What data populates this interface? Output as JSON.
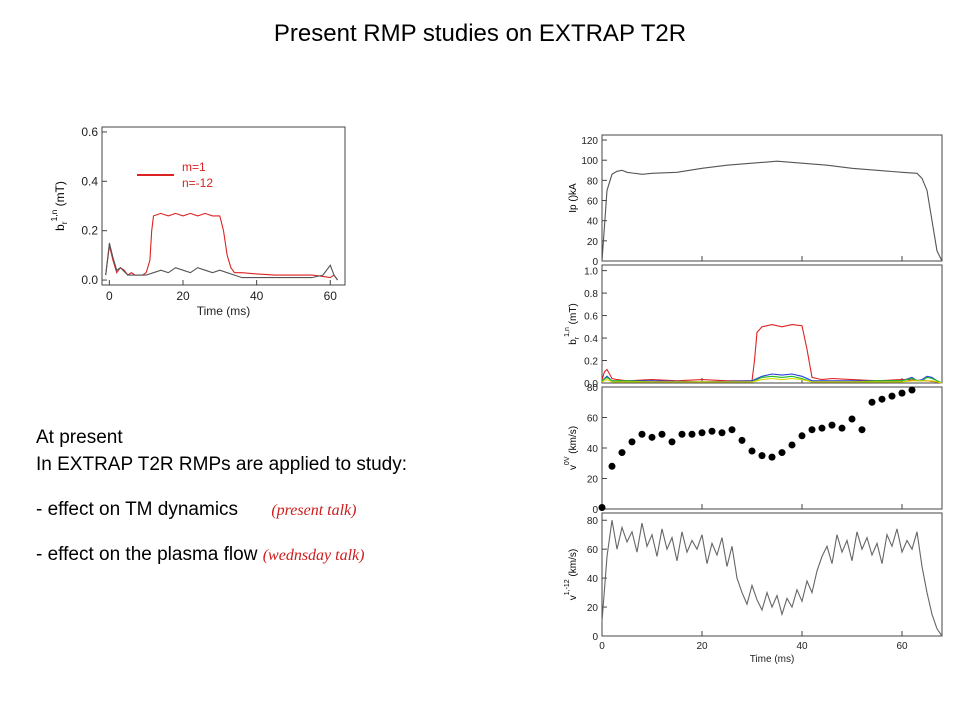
{
  "title": "Present RMP studies on EXTRAP T2R",
  "text": {
    "line1": "At present",
    "line2": "In EXTRAP T2R RMPs are applied to study:",
    "bullet1": "- effect on TM dynamics",
    "bullet1_note": "(present talk)",
    "bullet2": "- effect on the plasma flow",
    "bullet2_note": "(wednsday talk)"
  },
  "colors": {
    "red": "#dd2222",
    "gray": "#555555",
    "blue": "#1f3fd8",
    "green": "#22bb22",
    "yellow": "#d8d800"
  },
  "chart_data": [
    {
      "type": "line",
      "xlabel": "Time (ms)",
      "ylabel": "b_r^{1,n} (mT)",
      "ylabel_main": "b",
      "ylabel_sub": "r",
      "ylabel_sup": "1,n",
      "ylabel_unit": "(mT)",
      "xlim": [
        -2,
        64
      ],
      "ylim": [
        -0.02,
        0.62
      ],
      "xticks": [
        "0",
        "20",
        "40",
        "60"
      ],
      "yticks": [
        "0.0",
        "0.2",
        "0.4",
        "0.6"
      ],
      "legend": [
        "m=1",
        "n=-12"
      ],
      "legend_position": "top",
      "series": [
        {
          "name": "m=1 n=-12",
          "color": "#dd2222",
          "x": [
            -1,
            0,
            1,
            2,
            3,
            4,
            5,
            6,
            7,
            8,
            9,
            10,
            11,
            11.5,
            12,
            14,
            16,
            18,
            20,
            22,
            24,
            26,
            28,
            30,
            31,
            32,
            33,
            34,
            36,
            40,
            45,
            50,
            55,
            58,
            60,
            61,
            62
          ],
          "y": [
            0.02,
            0.14,
            0.08,
            0.03,
            0.05,
            0.04,
            0.02,
            0.03,
            0.02,
            0.02,
            0.02,
            0.03,
            0.08,
            0.2,
            0.26,
            0.27,
            0.26,
            0.27,
            0.26,
            0.27,
            0.26,
            0.27,
            0.26,
            0.26,
            0.2,
            0.1,
            0.05,
            0.03,
            0.03,
            0.025,
            0.02,
            0.02,
            0.02,
            0.015,
            0.01,
            0.02,
            0.0
          ]
        },
        {
          "name": "",
          "color": "#555555",
          "x": [
            -1,
            0,
            1,
            2,
            3,
            5,
            8,
            10,
            12,
            14,
            16,
            18,
            20,
            22,
            24,
            26,
            28,
            30,
            32,
            34,
            36,
            40,
            45,
            50,
            55,
            58,
            60,
            61,
            62
          ],
          "y": [
            0.02,
            0.15,
            0.09,
            0.04,
            0.05,
            0.02,
            0.02,
            0.02,
            0.03,
            0.04,
            0.03,
            0.05,
            0.04,
            0.03,
            0.05,
            0.04,
            0.03,
            0.04,
            0.03,
            0.02,
            0.01,
            0.01,
            0.01,
            0.01,
            0.01,
            0.02,
            0.06,
            0.02,
            0.0
          ]
        }
      ]
    },
    {
      "type": "line",
      "ylabel": "Ip ()kA",
      "ylim": [
        0,
        125
      ],
      "yticks": [
        "0",
        "20",
        "40",
        "60",
        "80",
        "100",
        "120"
      ],
      "series": [
        {
          "name": "",
          "color": "#555555",
          "x": [
            0,
            1,
            2,
            3,
            4,
            5,
            8,
            10,
            15,
            20,
            25,
            30,
            35,
            40,
            45,
            50,
            55,
            60,
            63,
            64,
            65,
            66,
            67,
            68
          ],
          "y": [
            0,
            70,
            86,
            89,
            90,
            88,
            86,
            87,
            88,
            92,
            95,
            97,
            99,
            97,
            95,
            92,
            90,
            88,
            87,
            82,
            70,
            40,
            10,
            0
          ]
        }
      ]
    },
    {
      "type": "line",
      "ylabel": "b_r^{1,n} (mT)",
      "ylabel_main": "b",
      "ylabel_sub": "r",
      "ylabel_sup": "1,n",
      "ylabel_unit": "(mT)",
      "ylim": [
        0,
        1.05
      ],
      "yticks": [
        "0.0",
        "0.2",
        "0.4",
        "0.6",
        "0.8",
        "1.0"
      ],
      "series": [
        {
          "name": "",
          "color": "#dd2222",
          "x": [
            0,
            0.5,
            1,
            1.5,
            2,
            3,
            5,
            10,
            15,
            20,
            25,
            30,
            30.5,
            31,
            32,
            34,
            36,
            38,
            40,
            41,
            42,
            44,
            46,
            50,
            55,
            60,
            65,
            67,
            68
          ],
          "y": [
            0.03,
            0.1,
            0.12,
            0.08,
            0.04,
            0.03,
            0.02,
            0.03,
            0.02,
            0.03,
            0.02,
            0.02,
            0.2,
            0.45,
            0.5,
            0.52,
            0.5,
            0.52,
            0.51,
            0.3,
            0.05,
            0.03,
            0.04,
            0.03,
            0.02,
            0.03,
            0.02,
            0.01,
            0.0
          ]
        },
        {
          "name": "",
          "color": "#1f3fd8",
          "x": [
            0,
            1,
            2,
            5,
            10,
            20,
            30,
            32,
            34,
            36,
            38,
            40,
            42,
            45,
            50,
            55,
            60,
            62,
            63,
            64,
            65,
            66,
            67,
            68
          ],
          "y": [
            0.02,
            0.06,
            0.02,
            0.02,
            0.02,
            0.01,
            0.02,
            0.06,
            0.08,
            0.07,
            0.08,
            0.06,
            0.02,
            0.02,
            0.02,
            0.02,
            0.02,
            0.05,
            0.02,
            0.03,
            0.06,
            0.05,
            0.02,
            0.0
          ]
        },
        {
          "name": "",
          "color": "#22bb22",
          "x": [
            0,
            1,
            2,
            5,
            10,
            20,
            30,
            32,
            34,
            36,
            38,
            40,
            42,
            45,
            50,
            55,
            60,
            62,
            63,
            64,
            65,
            66,
            67,
            68
          ],
          "y": [
            0.02,
            0.05,
            0.02,
            0.02,
            0.01,
            0.01,
            0.01,
            0.05,
            0.06,
            0.05,
            0.06,
            0.04,
            0.01,
            0.01,
            0.01,
            0.02,
            0.02,
            0.04,
            0.02,
            0.02,
            0.05,
            0.04,
            0.02,
            0.0
          ]
        },
        {
          "name": "",
          "color": "#d8d800",
          "x": [
            0,
            1,
            2,
            5,
            10,
            20,
            30,
            32,
            34,
            36,
            38,
            40,
            42,
            45,
            50,
            55,
            60,
            62,
            64,
            66,
            68
          ],
          "y": [
            0.01,
            0.03,
            0.01,
            0.01,
            0.01,
            0.01,
            0.01,
            0.03,
            0.04,
            0.03,
            0.04,
            0.03,
            0.01,
            0.01,
            0.01,
            0.01,
            0.01,
            0.02,
            0.02,
            0.02,
            0.0
          ]
        }
      ]
    },
    {
      "type": "scatter",
      "ylabel": "v^{0V} (km/s)",
      "ylabel_main": "v",
      "ylabel_sup": "0V",
      "ylabel_unit": "(km/s)",
      "ylim": [
        0,
        80
      ],
      "yticks": [
        "0",
        "20",
        "40",
        "60",
        "80"
      ],
      "series": [
        {
          "name": "",
          "color": "#000000",
          "x": [
            0,
            2,
            4,
            6,
            8,
            10,
            12,
            14,
            16,
            18,
            20,
            22,
            24,
            26,
            28,
            30,
            32,
            34,
            36,
            38,
            40,
            42,
            44,
            46,
            48,
            50,
            52,
            54,
            56,
            58,
            60,
            62
          ],
          "y": [
            1,
            28,
            37,
            44,
            49,
            47,
            49,
            44,
            49,
            49,
            50,
            51,
            50,
            52,
            45,
            38,
            35,
            34,
            37,
            42,
            48,
            52,
            53,
            55,
            53,
            59,
            52,
            70,
            72,
            74,
            76,
            78
          ]
        }
      ]
    },
    {
      "type": "line",
      "xlabel": "Time (ms)",
      "ylabel": "v^{1,-12} (km/s)",
      "ylabel_main": "v",
      "ylabel_sup": "1,-12",
      "ylabel_unit": "(km/s)",
      "xlim": [
        0,
        68
      ],
      "ylim": [
        0,
        85
      ],
      "xticks": [
        "0",
        "20",
        "40",
        "60"
      ],
      "yticks": [
        "0",
        "20",
        "40",
        "60",
        "80"
      ],
      "series": [
        {
          "name": "",
          "color": "#666666",
          "x": [
            0,
            1,
            2,
            3,
            4,
            5,
            6,
            7,
            8,
            9,
            10,
            11,
            12,
            13,
            14,
            15,
            16,
            17,
            18,
            19,
            20,
            21,
            22,
            23,
            24,
            25,
            26,
            27,
            28,
            29,
            30,
            31,
            32,
            33,
            34,
            35,
            36,
            37,
            38,
            39,
            40,
            41,
            42,
            43,
            44,
            45,
            46,
            47,
            48,
            49,
            50,
            51,
            52,
            53,
            54,
            55,
            56,
            57,
            58,
            59,
            60,
            61,
            62,
            63,
            64,
            65,
            66,
            67,
            68
          ],
          "y": [
            10,
            55,
            80,
            60,
            75,
            65,
            72,
            58,
            78,
            62,
            70,
            55,
            74,
            60,
            68,
            52,
            72,
            58,
            66,
            60,
            70,
            50,
            64,
            56,
            68,
            48,
            62,
            40,
            30,
            22,
            35,
            25,
            18,
            30,
            20,
            28,
            15,
            26,
            20,
            32,
            24,
            38,
            30,
            45,
            55,
            62,
            50,
            70,
            58,
            66,
            52,
            72,
            60,
            68,
            56,
            64,
            50,
            70,
            62,
            74,
            58,
            66,
            60,
            72,
            48,
            30,
            15,
            5,
            0
          ]
        }
      ]
    }
  ]
}
